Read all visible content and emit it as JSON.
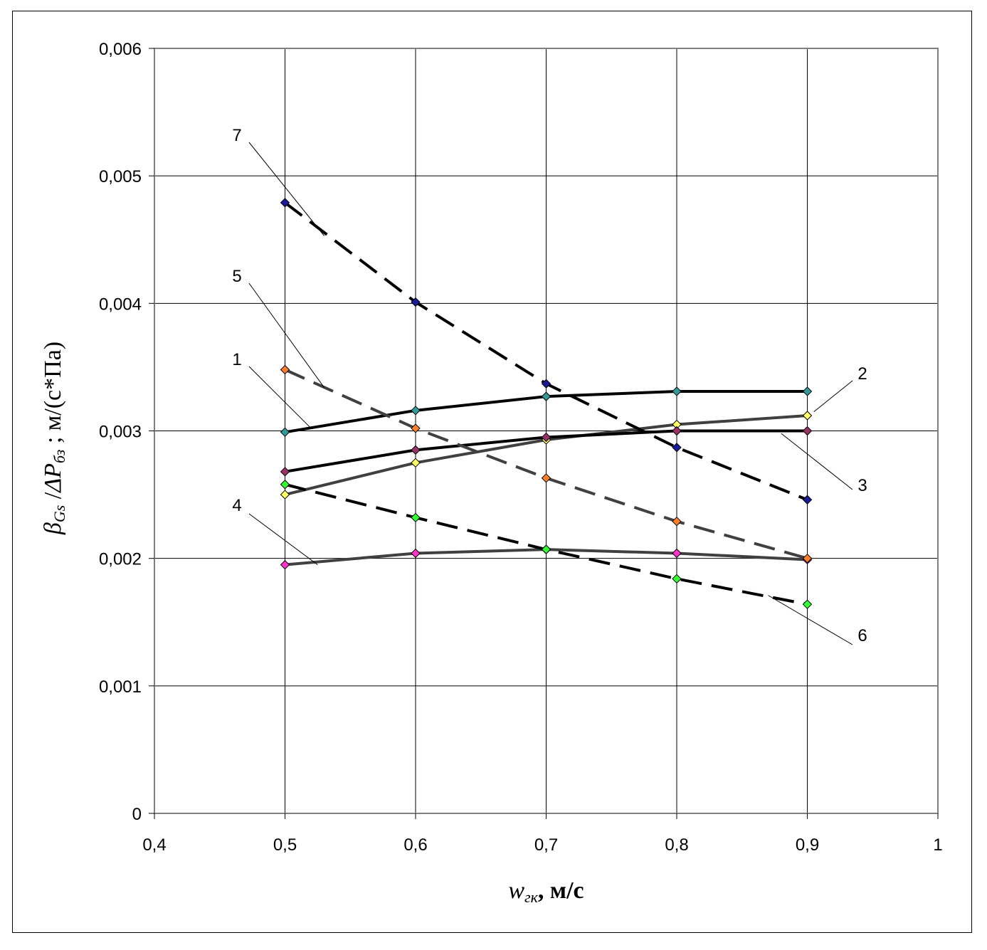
{
  "chart_data": {
    "type": "line",
    "title": "",
    "xlabel": {
      "symbol": "w",
      "subscript": "гк",
      "unit": ", м/с"
    },
    "ylabel": {
      "symbol1": "β",
      "subscript1": "Gs",
      "separator": " /",
      "symbol2": "ΔP",
      "subscript2": "бз",
      "unit": " ; м/(с*Па)"
    },
    "xlim": [
      0.4,
      1.0
    ],
    "ylim": [
      0,
      0.006
    ],
    "x_ticks": [
      0.4,
      0.5,
      0.6,
      0.7,
      0.8,
      0.9,
      1.0
    ],
    "x_tick_labels": [
      "0,4",
      "0,5",
      "0,6",
      "0,7",
      "0,8",
      "0,9",
      "1"
    ],
    "y_ticks": [
      0,
      0.001,
      0.002,
      0.003,
      0.004,
      0.005,
      0.006
    ],
    "y_tick_labels": [
      "0",
      "0,001",
      "0,002",
      "0,003",
      "0,004",
      "0,005",
      "0,006"
    ],
    "grid": true,
    "x": [
      0.5,
      0.6,
      0.7,
      0.8,
      0.9
    ],
    "series": [
      {
        "name": "1",
        "values": [
          0.00299,
          0.00316,
          0.00327,
          0.00331,
          0.00331
        ],
        "line_color": "#000000",
        "dashed": false,
        "marker_color": "#339999"
      },
      {
        "name": "2",
        "values": [
          0.0025,
          0.00275,
          0.00293,
          0.00305,
          0.00312
        ],
        "line_color": "#404040",
        "dashed": false,
        "marker_color": "#ffff66"
      },
      {
        "name": "3",
        "values": [
          0.00268,
          0.00285,
          0.00295,
          0.003,
          0.003
        ],
        "line_color": "#000000",
        "dashed": false,
        "marker_color": "#993366"
      },
      {
        "name": "4",
        "values": [
          0.00195,
          0.00204,
          0.00207,
          0.00204,
          0.00199
        ],
        "line_color": "#404040",
        "dashed": false,
        "marker_color": "#ff33cc"
      },
      {
        "name": "5",
        "values": [
          0.00348,
          0.00302,
          0.00263,
          0.00229,
          0.002
        ],
        "line_color": "#404040",
        "dashed": true,
        "marker_color": "#ff7f2a"
      },
      {
        "name": "6",
        "values": [
          0.00258,
          0.00232,
          0.00207,
          0.00184,
          0.00164
        ],
        "line_color": "#000000",
        "dashed": true,
        "marker_color": "#33ff33"
      },
      {
        "name": "7",
        "values": [
          0.00479,
          0.00401,
          0.00337,
          0.00287,
          0.00246
        ],
        "line_color": "#000000",
        "dashed": true,
        "marker_color": "#1a1a99"
      }
    ],
    "callouts": [
      {
        "label": "1",
        "target_x": 0.52,
        "target_y": 0.00302
      },
      {
        "label": "2",
        "target_x": 0.905,
        "target_y": 0.00315
      },
      {
        "label": "3",
        "target_x": 0.88,
        "target_y": 0.00298
      },
      {
        "label": "4",
        "target_x": 0.525,
        "target_y": 0.00195
      },
      {
        "label": "5",
        "target_x": 0.53,
        "target_y": 0.00334
      },
      {
        "label": "6",
        "target_x": 0.87,
        "target_y": 0.00171
      },
      {
        "label": "7",
        "target_x": 0.53,
        "target_y": 0.00453
      }
    ]
  }
}
